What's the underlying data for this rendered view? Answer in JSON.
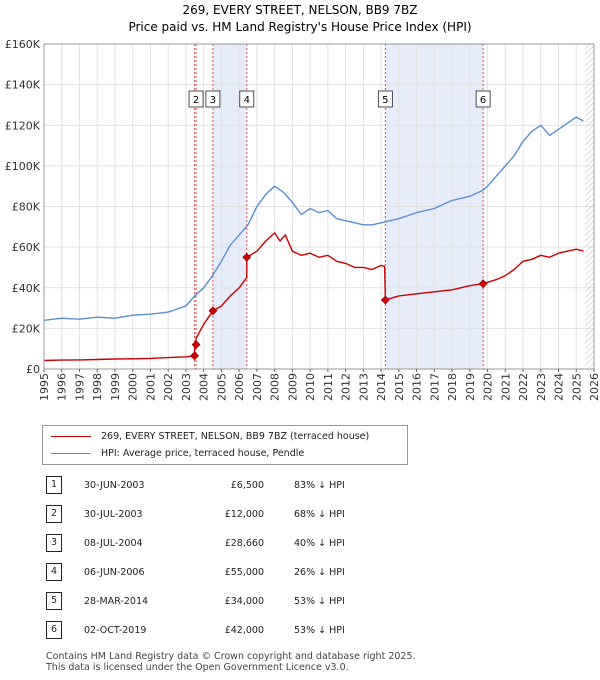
{
  "chart_data": {
    "type": "line",
    "title": "269, EVERY STREET, NELSON, BB9 7BZ",
    "subtitle": "Price paid vs. HM Land Registry's House Price Index (HPI)",
    "xlabel": "",
    "ylabel": "",
    "xlim": [
      1995,
      2026
    ],
    "ylim": [
      0,
      160000
    ],
    "x_ticks": [
      "1995",
      "1996",
      "1997",
      "1998",
      "1999",
      "2000",
      "2001",
      "2002",
      "2003",
      "2004",
      "2005",
      "2006",
      "2007",
      "2008",
      "2009",
      "2010",
      "2011",
      "2012",
      "2013",
      "2014",
      "2015",
      "2016",
      "2017",
      "2018",
      "2019",
      "2020",
      "2021",
      "2022",
      "2023",
      "2024",
      "2025",
      "2026"
    ],
    "y_ticks": [
      {
        "value": 0,
        "label": "£0"
      },
      {
        "value": 20000,
        "label": "£20K"
      },
      {
        "value": 40000,
        "label": "£40K"
      },
      {
        "value": 60000,
        "label": "£60K"
      },
      {
        "value": 80000,
        "label": "£80K"
      },
      {
        "value": 100000,
        "label": "£100K"
      },
      {
        "value": 120000,
        "label": "£120K"
      },
      {
        "value": 140000,
        "label": "£140K"
      },
      {
        "value": 160000,
        "label": "£160K"
      }
    ],
    "shaded_ranges": [
      [
        2004.52,
        2006.43
      ],
      [
        2014.24,
        2019.75
      ]
    ],
    "future_hatch_from": 2025.5,
    "series": [
      {
        "name": "269, EVERY STREET, NELSON, BB9 7BZ (terraced house)",
        "color": "#cc0000",
        "x": [
          1995,
          1996,
          1997,
          1998,
          1999,
          2000,
          2001,
          2002,
          2003.0,
          2003.49,
          2003.49,
          2003.57,
          2003.57,
          2004.0,
          2004.52,
          2004.52,
          2005.0,
          2005.5,
          2006.0,
          2006.43,
          2006.43,
          2007.0,
          2007.5,
          2008.0,
          2008.3,
          2008.6,
          2009.0,
          2009.5,
          2010.0,
          2010.5,
          2011.0,
          2011.5,
          2012.0,
          2012.5,
          2013.0,
          2013.5,
          2014.0,
          2014.2,
          2014.24,
          2014.24,
          2015.0,
          2016.0,
          2017.0,
          2018.0,
          2019.0,
          2019.75,
          2019.75,
          2020.5,
          2021.0,
          2021.5,
          2022.0,
          2022.5,
          2023.0,
          2023.5,
          2024.0,
          2024.5,
          2025.0,
          2025.4
        ],
        "values": [
          4200,
          4400,
          4500,
          4700,
          4900,
          5000,
          5200,
          5600,
          6000,
          6500,
          12000,
          12000,
          15000,
          22000,
          28660,
          28660,
          31000,
          36000,
          40000,
          45000,
          55000,
          58000,
          63000,
          67000,
          63000,
          66000,
          58000,
          56000,
          57000,
          55000,
          56000,
          53000,
          52000,
          50000,
          50000,
          49000,
          51000,
          50500,
          34000,
          34000,
          36000,
          37000,
          38000,
          39000,
          41000,
          42000,
          42000,
          44000,
          46000,
          49000,
          53000,
          54000,
          56000,
          55000,
          57000,
          58000,
          59000,
          58000
        ]
      },
      {
        "name": "HPI: Average price, terraced house, Pendle",
        "color": "#5b8fd0",
        "x": [
          1995,
          1996,
          1997,
          1998,
          1999,
          2000,
          2001,
          2002,
          2003,
          2003.5,
          2004,
          2004.5,
          2005,
          2005.5,
          2006,
          2006.5,
          2007,
          2007.5,
          2008,
          2008.5,
          2009,
          2009.5,
          2010,
          2010.5,
          2011,
          2011.5,
          2012,
          2012.5,
          2013,
          2013.5,
          2014,
          2015,
          2016,
          2017,
          2018,
          2019,
          2019.75,
          2020,
          2020.5,
          2021,
          2021.5,
          2022,
          2022.5,
          2023,
          2023.5,
          2024,
          2024.5,
          2025,
          2025.4
        ],
        "values": [
          24000,
          25000,
          24500,
          25500,
          25000,
          26500,
          27000,
          28000,
          31000,
          36000,
          40000,
          46000,
          53000,
          61000,
          66000,
          71000,
          80000,
          86000,
          90000,
          87000,
          82000,
          76000,
          79000,
          77000,
          78000,
          74000,
          73000,
          72000,
          71000,
          71000,
          72000,
          74000,
          77000,
          79000,
          83000,
          85000,
          88000,
          90000,
          95000,
          100000,
          105000,
          112000,
          117000,
          120000,
          115000,
          118000,
          121000,
          124000,
          122000
        ]
      }
    ],
    "sales": [
      {
        "n": "1",
        "label": "1",
        "x": 2003.49,
        "value": 6500
      },
      {
        "n": "2",
        "label": "2",
        "x": 2003.57,
        "value": 12000
      },
      {
        "n": "3",
        "label": "3",
        "x": 2004.52,
        "value": 28660
      },
      {
        "n": "4",
        "label": "4",
        "x": 2006.43,
        "value": 55000
      },
      {
        "n": "5",
        "label": "5",
        "x": 2014.24,
        "value": 34000
      },
      {
        "n": "6",
        "label": "6",
        "x": 2019.75,
        "value": 42000
      }
    ],
    "top_boxes": [
      {
        "label": "2",
        "x": 2003.57
      },
      {
        "label": "3",
        "x": 2004.52
      },
      {
        "label": "4",
        "x": 2006.43
      },
      {
        "label": "5",
        "x": 2014.24
      },
      {
        "label": "6",
        "x": 2019.75
      }
    ]
  },
  "legend": {
    "red_label": "269, EVERY STREET, NELSON, BB9 7BZ (terraced house)",
    "blue_label": "HPI: Average price, terraced house, Pendle"
  },
  "sales_table": [
    {
      "n": "1",
      "date": "30-JUN-2003",
      "price": "£6,500",
      "hpi": "83% ↓ HPI"
    },
    {
      "n": "2",
      "date": "30-JUL-2003",
      "price": "£12,000",
      "hpi": "68% ↓ HPI"
    },
    {
      "n": "3",
      "date": "08-JUL-2004",
      "price": "£28,660",
      "hpi": "40% ↓ HPI"
    },
    {
      "n": "4",
      "date": "06-JUN-2006",
      "price": "£55,000",
      "hpi": "26% ↓ HPI"
    },
    {
      "n": "5",
      "date": "28-MAR-2014",
      "price": "£34,000",
      "hpi": "53% ↓ HPI"
    },
    {
      "n": "6",
      "date": "02-OCT-2019",
      "price": "£42,000",
      "hpi": "53% ↓ HPI"
    }
  ],
  "footer": {
    "line1": "Contains HM Land Registry data © Crown copyright and database right 2025.",
    "line2": "This data is licensed under the Open Government Licence v3.0."
  }
}
